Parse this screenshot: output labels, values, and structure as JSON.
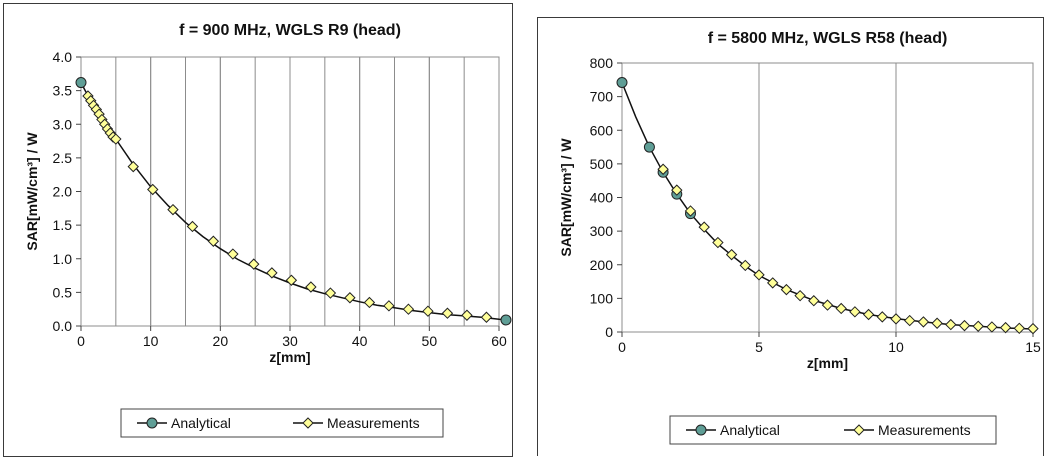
{
  "chart_data": [
    {
      "type": "line",
      "title": "f = 900 MHz, WGLS R9 (head)",
      "xlabel": "z[mm]",
      "ylabel": "SAR[mW/cm³] / W",
      "xlim": [
        0,
        60
      ],
      "ylim": [
        0,
        4
      ],
      "xticks": [
        "0",
        "10",
        "20",
        "30",
        "40",
        "50",
        "60"
      ],
      "yticks": [
        "0.0",
        "0.5",
        "1.0",
        "1.5",
        "2.0",
        "2.5",
        "3.0",
        "3.5",
        "4.0"
      ],
      "grid": "vertical",
      "legend": "bottom",
      "series": [
        {
          "name": "Analytical",
          "marker": "circle",
          "color": "#5f9e96",
          "x": [
            0,
            61
          ],
          "y": [
            3.62,
            0.09
          ],
          "line_x": [
            0,
            1,
            2,
            3,
            4,
            5,
            7.5,
            10,
            12.5,
            15,
            17.5,
            20,
            22.5,
            25,
            27.5,
            30,
            32.5,
            35,
            37.5,
            40,
            42.5,
            45,
            47.5,
            50,
            52.5,
            55,
            57.5,
            60,
            61
          ],
          "line_y": [
            3.62,
            3.42,
            3.28,
            3.12,
            2.96,
            2.78,
            2.4,
            2.07,
            1.79,
            1.54,
            1.33,
            1.15,
            0.99,
            0.86,
            0.74,
            0.64,
            0.55,
            0.48,
            0.42,
            0.36,
            0.31,
            0.27,
            0.23,
            0.2,
            0.17,
            0.15,
            0.13,
            0.1,
            0.09
          ]
        },
        {
          "name": "Measurements",
          "marker": "diamond",
          "color": "#ffff99",
          "x": [
            1,
            1.4,
            1.8,
            2.2,
            2.6,
            3.0,
            3.4,
            3.8,
            4.2,
            4.6,
            5.0,
            7.5,
            10.3,
            13.2,
            16.0,
            19.0,
            21.8,
            24.8,
            27.4,
            30.2,
            33.0,
            35.8,
            38.6,
            41.4,
            44.2,
            47.0,
            49.8,
            52.6,
            55.4,
            58.2
          ],
          "y": [
            3.42,
            3.35,
            3.28,
            3.22,
            3.15,
            3.07,
            3.0,
            2.93,
            2.87,
            2.81,
            2.78,
            2.37,
            2.03,
            1.73,
            1.48,
            1.26,
            1.07,
            0.92,
            0.79,
            0.68,
            0.58,
            0.49,
            0.42,
            0.35,
            0.3,
            0.25,
            0.22,
            0.19,
            0.16,
            0.13
          ]
        }
      ]
    },
    {
      "type": "line",
      "title": "f = 5800 MHz, WGLS R58 (head)",
      "xlabel": "z[mm]",
      "ylabel": "SAR[mW/cm³] / W",
      "xlim": [
        0,
        15
      ],
      "ylim": [
        0,
        800
      ],
      "xticks": [
        "0",
        "5",
        "10",
        "15"
      ],
      "yticks": [
        "0",
        "100",
        "200",
        "300",
        "400",
        "500",
        "600",
        "700",
        "800"
      ],
      "grid": "vertical",
      "legend": "bottom",
      "series": [
        {
          "name": "Analytical",
          "marker": "circle",
          "color": "#5f9e96",
          "x": [
            0,
            1,
            1.5,
            2,
            2.5
          ],
          "y": [
            742,
            550,
            475,
            410,
            352
          ],
          "line_x": [
            0,
            0.5,
            1,
            1.5,
            2,
            2.5,
            3,
            3.5,
            4,
            4.5,
            5,
            6,
            7,
            8,
            9,
            10,
            11,
            12,
            13,
            14,
            15
          ],
          "line_y": [
            742,
            640,
            550,
            475,
            410,
            352,
            305,
            262,
            228,
            196,
            168,
            126,
            94,
            70,
            52,
            40,
            30,
            22,
            17,
            12,
            9
          ]
        },
        {
          "name": "Measurements",
          "marker": "diamond",
          "color": "#ffff99",
          "x": [
            1.5,
            2,
            2.5,
            3,
            3.5,
            4,
            4.5,
            5,
            5.5,
            6,
            6.5,
            7,
            7.5,
            8,
            8.5,
            9,
            9.5,
            10,
            10.5,
            11,
            11.5,
            12,
            12.5,
            13,
            13.5,
            14,
            14.5,
            15
          ],
          "y": [
            484,
            422,
            360,
            312,
            266,
            230,
            198,
            170,
            146,
            126,
            108,
            93,
            80,
            70,
            60,
            52,
            45,
            39,
            34,
            30,
            26,
            22,
            19,
            17,
            15,
            13,
            11,
            10
          ]
        }
      ]
    }
  ]
}
